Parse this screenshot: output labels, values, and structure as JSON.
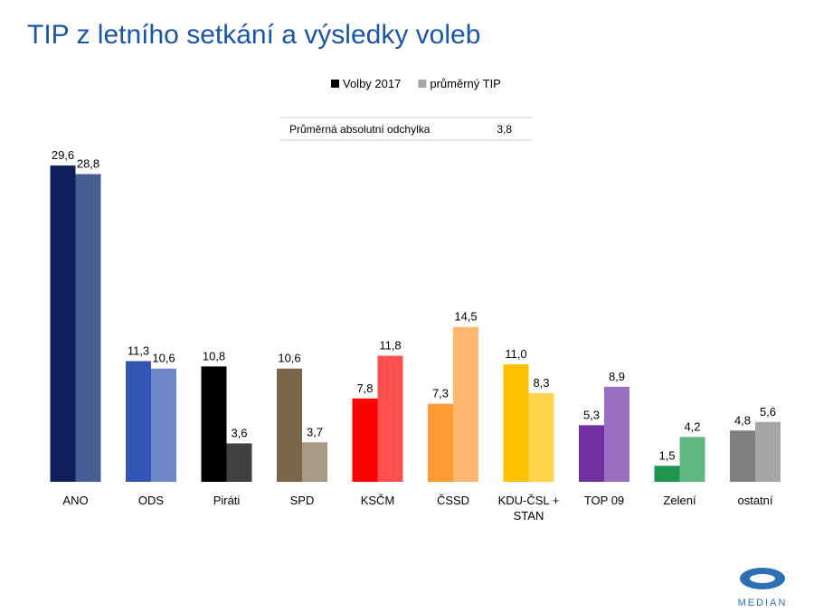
{
  "chart_data": {
    "type": "bar",
    "title": "TIP z letního setkání a výsledky voleb",
    "categories": [
      "ANO",
      "ODS",
      "Piráti",
      "SPD",
      "KSČM",
      "ČSSD",
      "KDU-ČSL + STAN",
      "TOP 09",
      "Zelení",
      "ostatní"
    ],
    "series": [
      {
        "name": "Volby  2017",
        "color": "#000000",
        "colors": [
          "#0f1f5c",
          "#3355b3",
          "#000000",
          "#7b6648",
          "#ff0000",
          "#ff9933",
          "#ffc000",
          "#7030a0",
          "#1e9650",
          "#7f7f7f"
        ],
        "values": [
          29.6,
          11.3,
          10.8,
          10.6,
          7.8,
          7.3,
          11,
          5.3,
          1.5,
          4.8
        ],
        "value_labels": [
          "29,6",
          "11,3",
          "10,8",
          "10,6",
          "7,8",
          "7,3",
          "11,0",
          "5,3",
          "1,5",
          "4,8"
        ]
      },
      {
        "name": "průměrný TIP",
        "color": "#a6a6a6",
        "colors": [
          "#475e94",
          "#6f88c9",
          "#404040",
          "#a89a84",
          "#ff5050",
          "#ffb870",
          "#ffd44d",
          "#9b6fc0",
          "#5fb882",
          "#a6a6a6"
        ],
        "values": [
          28.8,
          10.6,
          3.6,
          3.7,
          11.8,
          14.5,
          8.3,
          8.9,
          4.2,
          5.6
        ],
        "value_labels": [
          "28,8",
          "10,6",
          "3,6",
          "3,7",
          "11,8",
          "14,5",
          "8,3",
          "8,9",
          "4,2",
          "5,6"
        ]
      }
    ],
    "stat_table": {
      "label": "Průměrná absolutní odchylka",
      "value": "3,8"
    },
    "logo": "MEDIAN"
  }
}
